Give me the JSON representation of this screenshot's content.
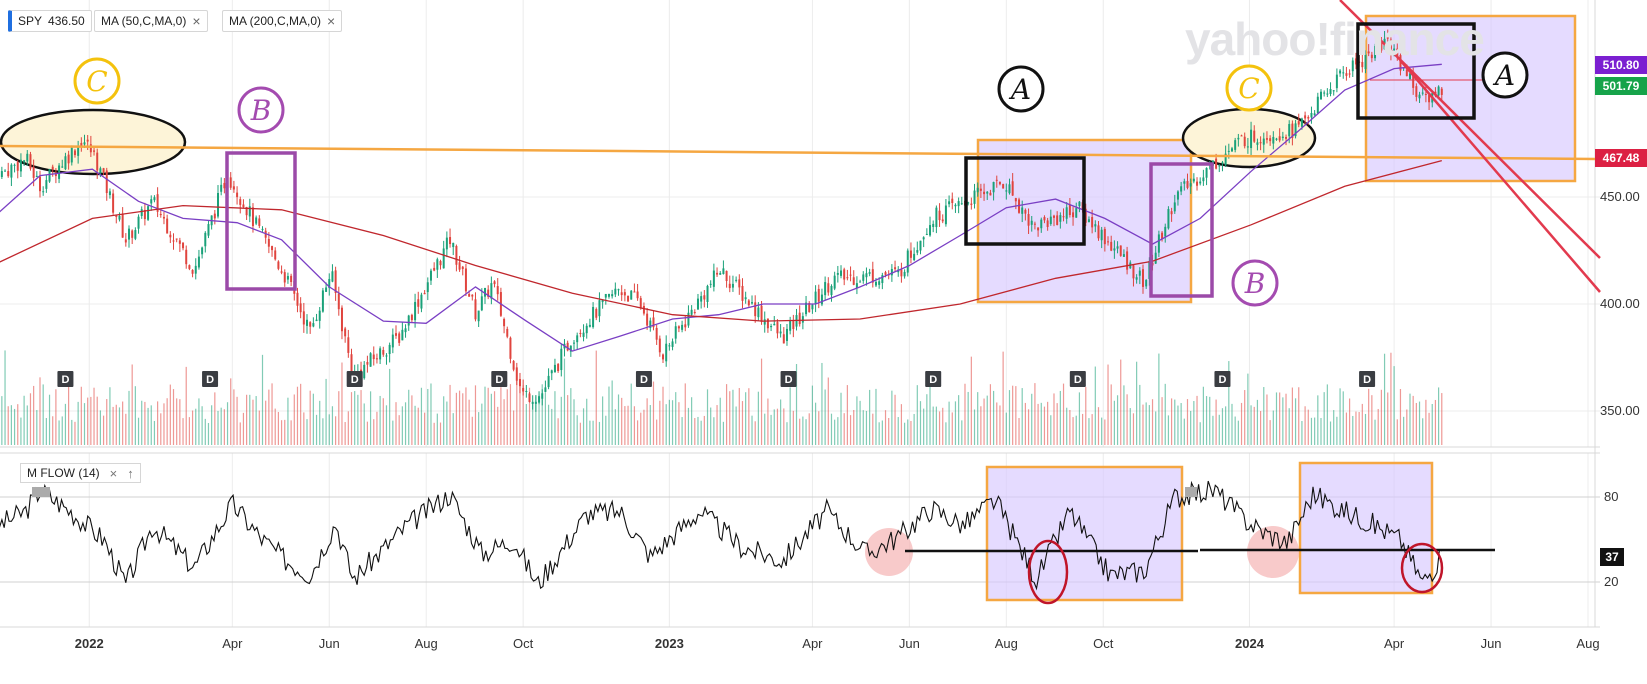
{
  "watermark": "yahoo!finance",
  "legend": {
    "symbol": "SPY",
    "price": "436.50",
    "ma50": "MA (50,C,MA,0)",
    "ma200": "MA (200,C,MA,0)",
    "close_icon": "close-icon"
  },
  "indicator": {
    "label": "M FLOW (14)",
    "current_value": "37",
    "icons": [
      "close-icon",
      "arrow-up-icon"
    ]
  },
  "price_tags": [
    {
      "value": "510.80",
      "color": "#7b1fd1"
    },
    {
      "value": "501.79",
      "color": "#16a34a"
    },
    {
      "value": "467.48",
      "color": "#dc2043"
    }
  ],
  "colors": {
    "up": "#1aa179",
    "down": "#e0443e",
    "ma50": "#7a3fc4",
    "ma200": "#c0272d",
    "resistance": "#f5a742",
    "channel": "#e23a4e",
    "annotation_box_fill": "#d7c7ff",
    "annotation_box_edge": "#f5a742",
    "ellipse_fill": "#fdf4d8"
  },
  "annotations": {
    "letters": [
      {
        "letter": "C",
        "color": "#f4c20d"
      },
      {
        "letter": "B",
        "color": "#a44bb0"
      },
      {
        "letter": "A",
        "color": "#111111"
      },
      {
        "letter": "C",
        "color": "#f4c20d"
      },
      {
        "letter": "B",
        "color": "#a44bb0"
      },
      {
        "letter": "A",
        "color": "#111111"
      }
    ],
    "dividend_marker": "D"
  },
  "chart_data": [
    {
      "type": "line",
      "panel": "price",
      "x_axis": {
        "ticks": [
          "2022",
          "Apr",
          "Jun",
          "Aug",
          "Oct",
          "2023",
          "Apr",
          "Jun",
          "Aug",
          "Oct",
          "2024",
          "Apr",
          "Jun",
          "Aug"
        ]
      },
      "y_axis": {
        "ticks": [
          350,
          400,
          450
        ],
        "range": [
          330,
          530
        ]
      },
      "dividend_dates": [
        "2021-12-17",
        "2022-03-18",
        "2022-06-17",
        "2022-09-16",
        "2022-12-16",
        "2023-03-17",
        "2023-06-16",
        "2023-09-15",
        "2023-12-15",
        "2024-03-15"
      ],
      "series": [
        {
          "values": [
            [
              "2021-11-01",
              458
            ],
            [
              "2021-11-22",
              468
            ],
            [
              "2021-12-01",
              455
            ],
            [
              "2021-12-28",
              477
            ],
            [
              "2022-01-05",
              468
            ],
            [
              "2022-01-24",
              430
            ],
            [
              "2022-02-10",
              448
            ],
            [
              "2022-03-08",
              416
            ],
            [
              "2022-03-29",
              461
            ],
            [
              "2022-04-15",
              438
            ],
            [
              "2022-05-05",
              412
            ],
            [
              "2022-05-20",
              387
            ],
            [
              "2022-06-02",
              415
            ],
            [
              "2022-06-16",
              366
            ],
            [
              "2022-07-15",
              385
            ],
            [
              "2022-08-16",
              430
            ],
            [
              "2022-09-01",
              396
            ],
            [
              "2022-09-12",
              410
            ],
            [
              "2022-09-30",
              358
            ],
            [
              "2022-10-12",
              357
            ],
            [
              "2022-11-01",
              385
            ],
            [
              "2022-11-30",
              407
            ],
            [
              "2022-12-13",
              401
            ],
            [
              "2022-12-28",
              377
            ],
            [
              "2023-02-02",
              416
            ],
            [
              "2023-03-13",
              384
            ],
            [
              "2023-04-14",
              412
            ],
            [
              "2023-05-25",
              414
            ],
            [
              "2023-06-15",
              440
            ],
            [
              "2023-07-31",
              457
            ],
            [
              "2023-08-18",
              436
            ],
            [
              "2023-09-15",
              445
            ],
            [
              "2023-10-27",
              410
            ],
            [
              "2023-11-15",
              450
            ],
            [
              "2023-12-28",
              477
            ],
            [
              "2024-01-31",
              482
            ],
            [
              "2024-02-29",
              508
            ],
            [
              "2024-03-28",
              523
            ],
            [
              "2024-04-19",
              495
            ],
            [
              "2024-05-01",
              501
            ]
          ]
        },
        {
          "name": "MA (50,C,MA,0)",
          "values": [
            [
              "2021-11-01",
              440
            ],
            [
              "2021-12-01",
              460
            ],
            [
              "2022-01-03",
              463
            ],
            [
              "2022-02-01",
              448
            ],
            [
              "2022-03-01",
              440
            ],
            [
              "2022-04-04",
              438
            ],
            [
              "2022-05-02",
              430
            ],
            [
              "2022-06-01",
              408
            ],
            [
              "2022-07-05",
              392
            ],
            [
              "2022-08-01",
              391
            ],
            [
              "2022-09-01",
              408
            ],
            [
              "2022-10-03",
              392
            ],
            [
              "2022-11-01",
              378
            ],
            [
              "2022-12-01",
              385
            ],
            [
              "2023-01-03",
              393
            ],
            [
              "2023-02-01",
              395
            ],
            [
              "2023-03-01",
              400
            ],
            [
              "2023-04-03",
              400
            ],
            [
              "2023-05-01",
              408
            ],
            [
              "2023-06-01",
              418
            ],
            [
              "2023-07-03",
              432
            ],
            [
              "2023-08-01",
              445
            ],
            [
              "2023-09-01",
              449
            ],
            [
              "2023-10-02",
              440
            ],
            [
              "2023-11-01",
              428
            ],
            [
              "2023-12-01",
              440
            ],
            [
              "2024-01-02",
              462
            ],
            [
              "2024-02-01",
              481
            ],
            [
              "2024-03-01",
              500
            ],
            [
              "2024-04-01",
              510
            ],
            [
              "2024-05-01",
              512
            ]
          ]
        },
        {
          "name": "MA (200,C,MA,0)",
          "values": [
            [
              "2021-11-01",
              418
            ],
            [
              "2022-01-03",
              440
            ],
            [
              "2022-03-01",
              446
            ],
            [
              "2022-05-02",
              444
            ],
            [
              "2022-07-05",
              432
            ],
            [
              "2022-09-01",
              418
            ],
            [
              "2022-11-01",
              405
            ],
            [
              "2023-01-03",
              395
            ],
            [
              "2023-03-01",
              392
            ],
            [
              "2023-05-01",
              393
            ],
            [
              "2023-07-03",
              400
            ],
            [
              "2023-09-01",
              412
            ],
            [
              "2023-11-01",
              420
            ],
            [
              "2024-01-02",
              437
            ],
            [
              "2024-03-01",
              455
            ],
            [
              "2024-05-01",
              467
            ]
          ]
        }
      ]
    },
    {
      "type": "line",
      "panel": "indicator",
      "title": "M FLOW (14)",
      "y_axis": {
        "ticks": [
          20,
          80
        ],
        "range": [
          -10,
          100
        ]
      },
      "series": [
        {
          "name": "M FLOW (14)",
          "values": [
            [
              "2021-11-01",
              58
            ],
            [
              "2021-11-22",
              70
            ],
            [
              "2021-12-01",
              85
            ],
            [
              "2021-12-20",
              70
            ],
            [
              "2022-01-10",
              50
            ],
            [
              "2022-01-24",
              18
            ],
            [
              "2022-02-10",
              60
            ],
            [
              "2022-03-08",
              30
            ],
            [
              "2022-04-01",
              75
            ],
            [
              "2022-04-20",
              50
            ],
            [
              "2022-05-05",
              35
            ],
            [
              "2022-05-20",
              25
            ],
            [
              "2022-06-05",
              62
            ],
            [
              "2022-06-16",
              22
            ],
            [
              "2022-07-20",
              60
            ],
            [
              "2022-08-16",
              82
            ],
            [
              "2022-09-05",
              40
            ],
            [
              "2022-09-25",
              50
            ],
            [
              "2022-10-10",
              18
            ],
            [
              "2022-11-10",
              68
            ],
            [
              "2022-12-01",
              70
            ],
            [
              "2022-12-20",
              38
            ],
            [
              "2023-01-20",
              70
            ],
            [
              "2023-02-15",
              45
            ],
            [
              "2023-03-13",
              35
            ],
            [
              "2023-04-10",
              70
            ],
            [
              "2023-05-05",
              40
            ],
            [
              "2023-05-25",
              52
            ],
            [
              "2023-06-15",
              72
            ],
            [
              "2023-07-05",
              60
            ],
            [
              "2023-07-25",
              78
            ],
            [
              "2023-08-20",
              22
            ],
            [
              "2023-09-10",
              70
            ],
            [
              "2023-10-05",
              25
            ],
            [
              "2023-10-27",
              28
            ],
            [
              "2023-11-15",
              80
            ],
            [
              "2023-12-10",
              85
            ],
            [
              "2023-12-28",
              65
            ],
            [
              "2024-01-10",
              55
            ],
            [
              "2024-01-25",
              48
            ],
            [
              "2024-02-10",
              82
            ],
            [
              "2024-03-01",
              70
            ],
            [
              "2024-03-20",
              60
            ],
            [
              "2024-04-05",
              50
            ],
            [
              "2024-04-19",
              20
            ],
            [
              "2024-05-01",
              37
            ]
          ]
        }
      ]
    }
  ]
}
